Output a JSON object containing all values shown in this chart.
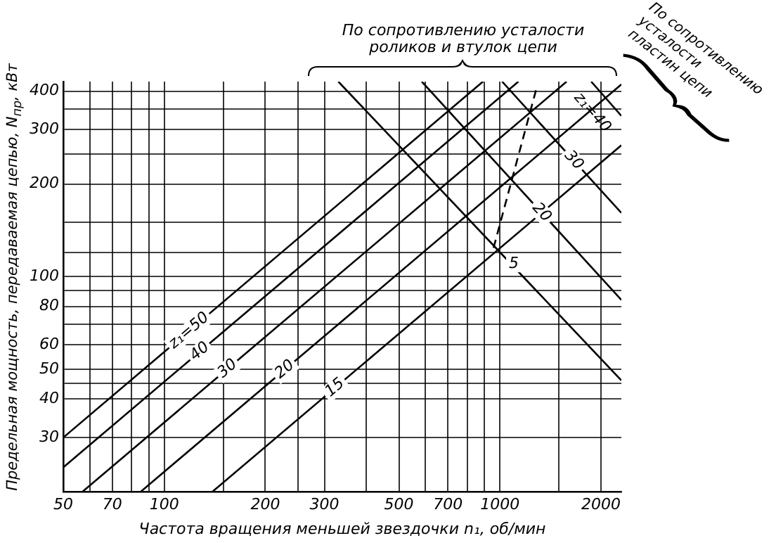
{
  "chart_data": {
    "type": "line",
    "xlabel": "Частота вращения меньшей звездочки n₁, об/мин",
    "ylabel": "Предельная мощность, передаваемая цепью, N$_{пр}$, кВт",
    "log": "xy",
    "grid": true,
    "legend": false,
    "xlim": [
      50,
      2300
    ],
    "ylim": [
      20,
      430
    ],
    "xticks": [
      50,
      {
        "value": 60,
        "label": null
      },
      70,
      {
        "value": 80,
        "label": null
      },
      {
        "value": 90,
        "label": null
      },
      100,
      {
        "value": 150,
        "label": null
      },
      200,
      {
        "value": 250,
        "label": null
      },
      300,
      {
        "value": 400,
        "label": null
      },
      500,
      {
        "value": 600,
        "label": null
      },
      700,
      {
        "value": 800,
        "label": null
      },
      {
        "value": 900,
        "label": null
      },
      1000,
      {
        "value": 1500,
        "label": null
      },
      2000
    ],
    "yticks": [
      30,
      40,
      {
        "value": 45,
        "label": null
      },
      50,
      60,
      {
        "value": 70,
        "label": null
      },
      80,
      {
        "value": 90,
        "label": null
      },
      100,
      {
        "value": 120,
        "label": null
      },
      {
        "value": 150,
        "label": null
      },
      200,
      {
        "value": 250,
        "label": null
      },
      300,
      {
        "value": 350,
        "label": null
      },
      400
    ],
    "series": [
      {
        "name": "z₁=50",
        "color": "#000000",
        "x": [
          50,
          890
        ],
        "values": [
          30,
          430
        ]
      },
      {
        "name": "40",
        "color": "#000000",
        "x": [
          50,
          1135
        ],
        "values": [
          24,
          430
        ]
      },
      {
        "name": "30",
        "color": "#000000",
        "x": [
          57,
          1580
        ],
        "values": [
          20,
          430
        ]
      },
      {
        "name": "20",
        "color": "#000000",
        "x": [
          85,
          2300
        ],
        "values": [
          20,
          421
        ]
      },
      {
        "name": "15",
        "color": "#000000",
        "x": [
          139,
          2300
        ],
        "values": [
          20,
          267
        ]
      },
      {
        "color": "#000000",
        "x": [
          330,
          2300
        ],
        "values": [
          430,
          46
        ]
      },
      {
        "name": "20",
        "color": "#000000",
        "x": [
          585,
          2300
        ],
        "values": [
          430,
          84
        ]
      },
      {
        "name": "30",
        "color": "#000000",
        "x": [
          1015,
          2300
        ],
        "values": [
          430,
          161
        ]
      },
      {
        "name": "z₁=40",
        "color": "#000000",
        "x": [
          1870,
          2300
        ],
        "values": [
          430,
          333
        ]
      },
      {
        "color": "#000000",
        "x": [
          957,
          1285
        ],
        "values": [
          124,
          409
        ],
        "line_style": "dashed"
      }
    ],
    "annotations": [
      {
        "text": "5",
        "x": 1100,
        "y": 110
      },
      "По сопротивлению усталости роликов и втулок цепи",
      "По сопротивлению усталости пластин цепи"
    ]
  }
}
